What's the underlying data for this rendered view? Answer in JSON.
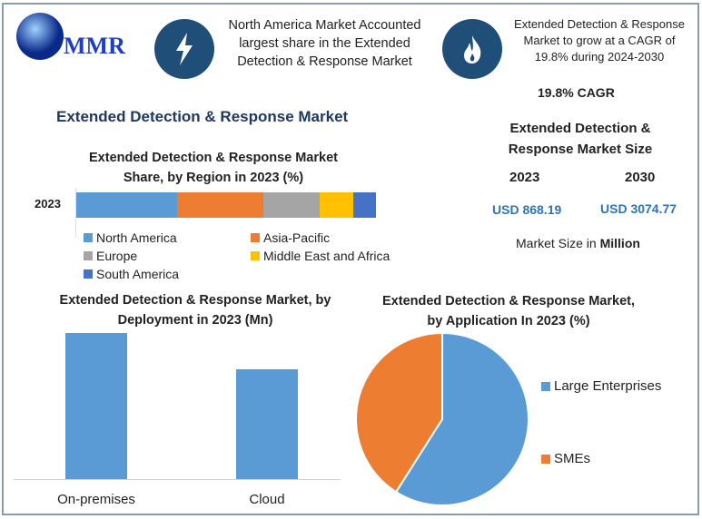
{
  "logo": {
    "text": "MMR"
  },
  "header": {
    "highlight1": {
      "icon": "lightning-icon",
      "text": "North America Market Accounted largest share in the Extended Detection & Response Market"
    },
    "highlight2": {
      "icon": "flame-icon",
      "text": "Extended Detection & Response Market to grow at a CAGR of 19.8% during 2024-2030"
    },
    "cagr": "19.8% CAGR"
  },
  "main_title": "Extended Detection & Response Market",
  "market_size": {
    "title": "Extended Detection & Response Market Size",
    "years": [
      "2023",
      "2030"
    ],
    "values": [
      "USD 868.19",
      "USD 3074.77"
    ],
    "note_prefix": "Market Size in ",
    "note_unit": "Million",
    "value_color": "#2e75b6"
  },
  "chart_data": [
    {
      "type": "bar",
      "orientation": "horizontal-stacked",
      "title": "Extended Detection & Response Market Share, by Region in 2023 (%)",
      "categories": [
        "2023"
      ],
      "series": [
        {
          "name": "North America",
          "values": [
            33.6
          ],
          "color": "#5b9bd5"
        },
        {
          "name": "Asia-Pacific",
          "values": [
            28.8
          ],
          "color": "#ed7d31"
        },
        {
          "name": "Europe",
          "values": [
            18.8
          ],
          "color": "#a5a5a5"
        },
        {
          "name": "Middle East and Africa",
          "values": [
            11.2
          ],
          "color": "#ffc000"
        },
        {
          "name": "South America",
          "values": [
            7.6
          ],
          "color": "#4472c4"
        }
      ],
      "legend": "bottom"
    },
    {
      "type": "bar",
      "title": "Extended Detection & Response Market, by Deployment in 2023 (Mn)",
      "categories": [
        "On-premises",
        "Cloud"
      ],
      "values": [
        100,
        75
      ],
      "color": "#5b9bd5"
    },
    {
      "type": "pie",
      "title": "Extended Detection & Response Market, by Application In 2023 (%)",
      "categories": [
        "Large Enterprises",
        "SMEs"
      ],
      "values": [
        59,
        41
      ],
      "colors": [
        "#5b9bd5",
        "#ed7d31"
      ],
      "legend": "right"
    }
  ]
}
